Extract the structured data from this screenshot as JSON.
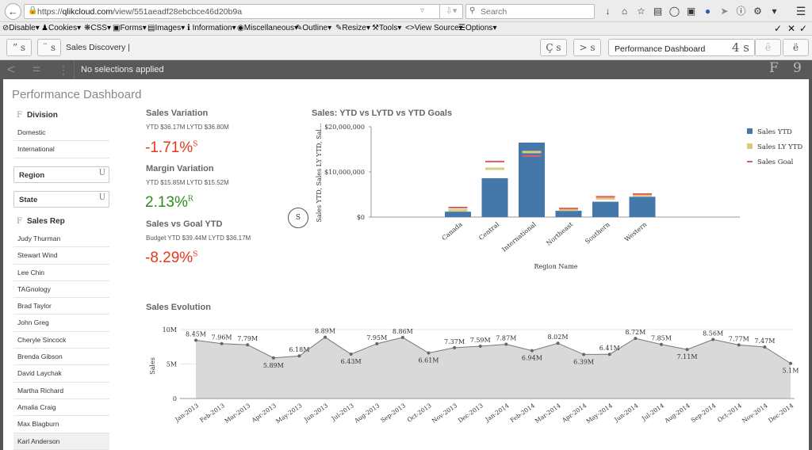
{
  "browser": {
    "url_prefix": "https://",
    "url_domain": "qlikcloud.com",
    "url_path": "/view/551aeadf28ebcbce46d20b9a",
    "search_placeholder": "Search"
  },
  "webdev_toolbar": {
    "items": [
      "Disable",
      "Cookies",
      "CSS",
      "Forms",
      "Images",
      "Information",
      "Miscellaneous",
      "Outline",
      "Resize",
      "Tools",
      "View Source",
      "Options"
    ]
  },
  "qlik_toolbar": {
    "app_name": "Sales Discovery |",
    "sheet_name": "Performance Dashboard",
    "glyph_btn1": "” s",
    "glyph_btn2": "¨ s",
    "glyph_btn3": "Ç s",
    "glyph_btn4": "> s",
    "glyph_sheet": "4 s",
    "glyph_prev": "ê",
    "glyph_next": "ë"
  },
  "selections": {
    "text": "No selections applied",
    "glyph_right1": "F",
    "glyph_right2": "9"
  },
  "sheet": {
    "title": "Performance Dashboard"
  },
  "filters": {
    "division": {
      "label": "Division",
      "glyph": "F",
      "items": [
        "Domestic",
        "International"
      ]
    },
    "region": {
      "label": "Region",
      "glyph": "U"
    },
    "state": {
      "label": "State",
      "glyph": "U"
    },
    "sales_rep": {
      "label": "Sales Rep",
      "glyph": "F",
      "items": [
        "Judy Thurman",
        "Stewart Wind",
        "Lee Chin",
        "TAGnology",
        "Brad Taylor",
        "John Greg",
        "Cheryle Sincock",
        "Brenda Gibson",
        "David Laychak",
        "Martha Richard",
        "Amalia Craig",
        "Max Blagburn",
        "Karl Anderson"
      ]
    }
  },
  "kpis": {
    "sales_variation": {
      "title": "Sales Variation",
      "sub": "YTD $36.17M LYTD $36.80M",
      "value": "-1.71%",
      "glyph": "S"
    },
    "margin_variation": {
      "title": "Margin Variation",
      "sub": "YTD $15.85M LYTD $15.52M",
      "value": "2.13%",
      "glyph": "R"
    },
    "sales_vs_goal": {
      "title": "Sales vs Goal YTD",
      "sub": "Budget YTD $39.44M LYTD $36.17M",
      "value": "-8.29%",
      "glyph": "S"
    },
    "toggle_glyph": "S"
  },
  "colors": {
    "bar": "#4477aa",
    "ly": "#ddcc77",
    "goal": "#e05a6a",
    "red": "#e8351b",
    "green": "#2d8b1c",
    "area": "#d9d9d9"
  },
  "chart_data": [
    {
      "type": "bar",
      "title": "Sales: YTD vs LYTD vs YTD Goals",
      "xlabel": "Region Name",
      "ylabel": "Sales YTD, Sales LY YTD, Sal...",
      "categories": [
        "Canada",
        "Central",
        "International",
        "Northeast",
        "Southern",
        "Western"
      ],
      "series": [
        {
          "name": "Sales YTD",
          "values": [
            1200000,
            8600000,
            16500000,
            1400000,
            3400000,
            4500000
          ]
        },
        {
          "name": "Sales LY YTD",
          "values": [
            1500000,
            10700000,
            14400000,
            1600000,
            4100000,
            4800000
          ]
        },
        {
          "name": "Sales Goal",
          "values": [
            2100000,
            12300000,
            13500000,
            1900000,
            4500000,
            5100000
          ]
        }
      ],
      "yticks": [
        "$0",
        "$10,000,000",
        "$20,000,000"
      ],
      "ylim": [
        0,
        20000000
      ],
      "legend": "right"
    },
    {
      "type": "area",
      "title": "Sales Evolution",
      "ylabel": "Sales",
      "x": [
        "Jan-2013",
        "Feb-2013",
        "Mar-2013",
        "Apr-2013",
        "May-2013",
        "Jun-2013",
        "Jul-2013",
        "Aug-2013",
        "Sep-2013",
        "Oct-2013",
        "Nov-2013",
        "Dec-2013",
        "Jan-2014",
        "Feb-2014",
        "Mar-2014",
        "Apr-2014",
        "May-2014",
        "Jun-2014",
        "Jul-2014",
        "Aug-2014",
        "Sep-2014",
        "Oct-2014",
        "Nov-2014",
        "Dec-2014"
      ],
      "values": [
        8.45,
        7.96,
        7.79,
        5.89,
        6.18,
        8.89,
        6.43,
        7.95,
        8.86,
        6.61,
        7.37,
        7.59,
        7.87,
        6.94,
        8.02,
        6.39,
        6.41,
        8.72,
        7.85,
        7.11,
        8.56,
        7.77,
        7.47,
        5.1
      ],
      "labels": [
        "8.45M",
        "7.96M",
        "7.79M",
        "5.89M",
        "6.18M",
        "8.89M",
        "6.43M",
        "7.95M",
        "8.86M",
        "6.61M",
        "7.37M",
        "7.59M",
        "7.87M",
        "6.94M",
        "8.02M",
        "6.39M",
        "6.41M",
        "8.72M",
        "7.85M",
        "7.11M",
        "8.56M",
        "7.77M",
        "7.47M",
        "5.1M"
      ],
      "yticks": [
        "0",
        "5M",
        "10M"
      ],
      "ylim": [
        0,
        10
      ]
    }
  ]
}
